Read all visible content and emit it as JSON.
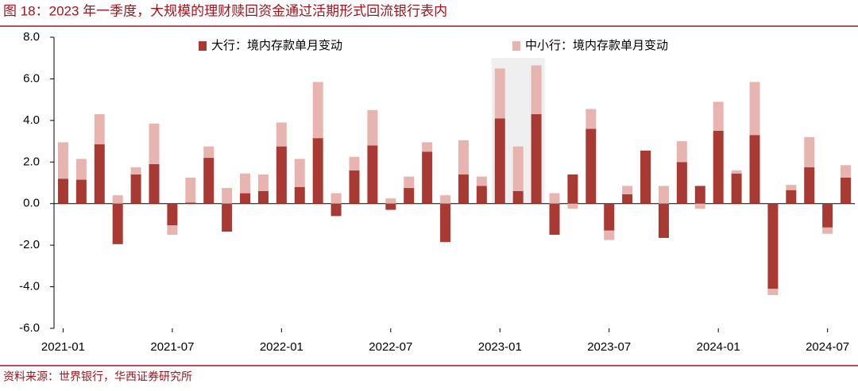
{
  "chart_data": {
    "type": "bar",
    "stacked": true,
    "title": "图 18：2023 年一季度，大规模的理财赎回资金通过活期形式回流银行表内",
    "source": "资料来源：世界银行，华西证券研究所",
    "categories": [
      "2021-01",
      null,
      null,
      null,
      null,
      null,
      "2021-07",
      null,
      null,
      null,
      null,
      null,
      "2022-01",
      null,
      null,
      null,
      null,
      null,
      "2022-07",
      null,
      null,
      null,
      null,
      null,
      "2023-01",
      null,
      null,
      null,
      null,
      null,
      "2023-07",
      null,
      null,
      null,
      null,
      null,
      "2024-01",
      null,
      null,
      null,
      null,
      null,
      "2024-07",
      null
    ],
    "series": [
      {
        "name": "大行：境内存款单月变动",
        "color": "#a93a33",
        "values": [
          1.2,
          1.15,
          2.85,
          -1.95,
          1.4,
          1.9,
          -1.05,
          0.05,
          2.2,
          -1.35,
          0.5,
          0.6,
          2.75,
          0.8,
          3.15,
          -0.6,
          1.6,
          2.8,
          -0.3,
          0.75,
          2.5,
          -1.85,
          1.4,
          0.85,
          4.1,
          0.6,
          4.3,
          -1.5,
          1.4,
          3.6,
          -1.3,
          0.45,
          2.55,
          -1.65,
          2.0,
          0.85,
          3.5,
          1.45,
          3.3,
          -4.1,
          0.65,
          1.75,
          -1.15,
          1.25
        ]
      },
      {
        "name": "中小行：境内存款单月变动",
        "color": "#e8b4b0",
        "values": [
          1.75,
          1.0,
          1.45,
          0.4,
          0.35,
          1.95,
          -0.45,
          1.2,
          0.55,
          0.75,
          0.95,
          0.8,
          1.15,
          1.35,
          2.7,
          0.5,
          0.65,
          1.7,
          0.25,
          0.55,
          0.45,
          0.4,
          1.65,
          0.45,
          2.4,
          2.15,
          2.35,
          0.5,
          -0.25,
          0.95,
          -0.45,
          0.4,
          0,
          0.85,
          1.0,
          -0.25,
          1.4,
          0.15,
          2.55,
          -0.3,
          0.25,
          1.45,
          -0.3,
          0.6
        ]
      }
    ],
    "ylim": [
      -6,
      8
    ],
    "yticks": [
      {
        "value": -6,
        "label": "-6.0"
      },
      {
        "value": -4,
        "label": "-4.0"
      },
      {
        "value": -2,
        "label": "-2.0"
      },
      {
        "value": 0,
        "label": "0.0"
      },
      {
        "value": 2,
        "label": "2.0"
      },
      {
        "value": 4,
        "label": "4.0"
      },
      {
        "value": 6,
        "label": "6.0"
      },
      {
        "value": 8,
        "label": "8.0"
      }
    ]
  }
}
